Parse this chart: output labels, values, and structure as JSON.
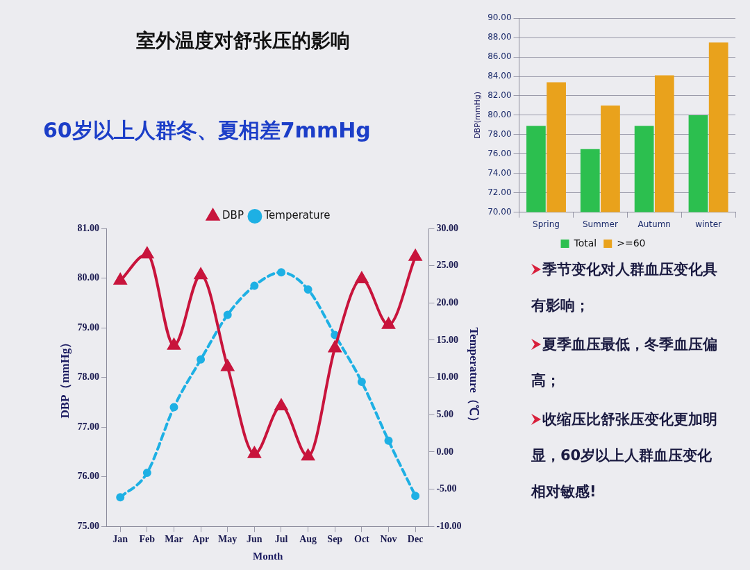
{
  "chart_data": [
    {
      "type": "line",
      "title": "室外温度对舒张压的影响",
      "subtitle": "60岁以上人群冬、夏相差7mmHg",
      "xlabel": "Month",
      "ylabel": "DBP（mmHg）",
      "y2label": "Temperature（℃）",
      "categories": [
        "Jan",
        "Feb",
        "Mar",
        "Apr",
        "May",
        "Jun",
        "Jul",
        "Aug",
        "Sep",
        "Oct",
        "Nov",
        "Dec"
      ],
      "series": [
        {
          "name": "DBP",
          "color": "#c8143c",
          "marker": "triangle",
          "line_style": "solid",
          "values": [
            79.95,
            80.48,
            78.64,
            80.06,
            78.21,
            76.46,
            77.42,
            76.41,
            78.59,
            79.98,
            79.06,
            80.43
          ]
        },
        {
          "name": "Temperature",
          "color": "#1eb0e4",
          "marker": "circle",
          "line_style": "dashed",
          "axis": "y2",
          "values": [
            -6.1,
            -2.8,
            6.0,
            12.4,
            18.4,
            22.3,
            24.1,
            21.8,
            15.7,
            9.4,
            1.5,
            -5.9
          ]
        }
      ],
      "ylim": [
        75,
        81
      ],
      "yticks": [
        {
          "value": 75,
          "label": "75.00"
        },
        {
          "value": 76,
          "label": "76.00"
        },
        {
          "value": 77,
          "label": "77.00"
        },
        {
          "value": 78,
          "label": "78.00"
        },
        {
          "value": 79,
          "label": "79.00"
        },
        {
          "value": 80,
          "label": "80.00"
        },
        {
          "value": 81,
          "label": "81.00"
        }
      ],
      "y2lim": [
        -10,
        30
      ],
      "y2ticks": [
        {
          "value": -10,
          "label": "-10.00"
        },
        {
          "value": -5,
          "label": "-5.00"
        },
        {
          "value": 0,
          "label": "0.00"
        },
        {
          "value": 5,
          "label": "5.00"
        },
        {
          "value": 10,
          "label": "10.00"
        },
        {
          "value": 15,
          "label": "15.00"
        },
        {
          "value": 20,
          "label": "20.00"
        },
        {
          "value": 25,
          "label": "25.00"
        },
        {
          "value": 30,
          "label": "30.00"
        }
      ],
      "grid": false,
      "legend": "top"
    },
    {
      "type": "bar",
      "ylabel": "DBP(mmHg)",
      "categories": [
        "Spring",
        "Summer",
        "Autumn",
        "winter"
      ],
      "series": [
        {
          "name": "Total",
          "color": "#2cbf4f",
          "values": [
            78.9,
            76.5,
            78.9,
            80.0
          ]
        },
        {
          "name": ">=60",
          "color": "#e9a21c",
          "values": [
            83.4,
            81.0,
            84.1,
            87.5
          ]
        }
      ],
      "ylim": [
        70,
        90
      ],
      "yticks": [
        {
          "value": 70,
          "label": "70.00"
        },
        {
          "value": 72,
          "label": "72.00"
        },
        {
          "value": 74,
          "label": "74.00"
        },
        {
          "value": 76,
          "label": "76.00"
        },
        {
          "value": 78,
          "label": "78.00"
        },
        {
          "value": 80,
          "label": "80.00"
        },
        {
          "value": 82,
          "label": "82.00"
        },
        {
          "value": 84,
          "label": "84.00"
        },
        {
          "value": 86,
          "label": "86.00"
        },
        {
          "value": 88,
          "label": "88.00"
        },
        {
          "value": 90,
          "label": "90.00"
        }
      ],
      "grid": "y",
      "legend": "bottom"
    },
    {
      "type": "other",
      "annotations": [
        "季节变化对人群血压变化具有影响；",
        "夏季血压最低，冬季血压偏高；",
        "收缩压比舒张压变化更加明显，60岁以上人群血压变化相对敏感!"
      ]
    }
  ]
}
